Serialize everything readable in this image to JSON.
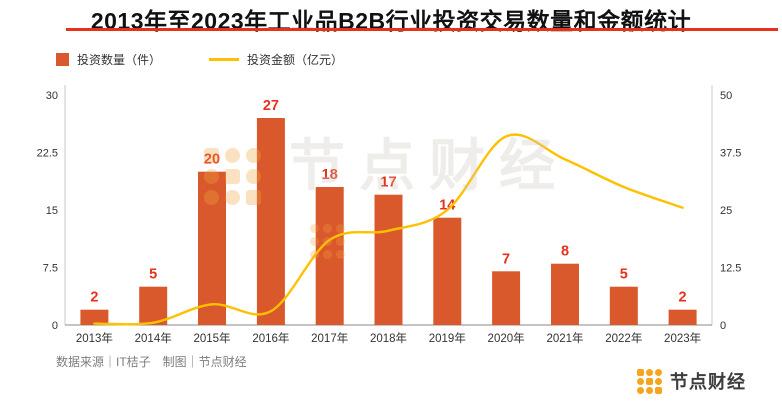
{
  "title": "2013年至2023年工业品B2B行业投资交易数量和金额统计",
  "chart_data": {
    "type": "combo",
    "title": "2013年至2023年工业品B2B行业投资交易数量和金额统计",
    "categories": [
      "2013年",
      "2014年",
      "2015年",
      "2016年",
      "2017年",
      "2018年",
      "2019年",
      "2020年",
      "2021年",
      "2022年",
      "2023年"
    ],
    "series": [
      {
        "name": "投资数量（件）",
        "type": "bar",
        "axis": "left",
        "color": "#d9592c",
        "values": [
          2,
          5,
          20,
          27,
          18,
          17,
          14,
          7,
          8,
          5,
          2
        ]
      },
      {
        "name": "投资金额（亿元）",
        "type": "line",
        "axis": "right",
        "color": "#ffc000",
        "values": [
          0.3,
          0.5,
          4.5,
          3,
          18.5,
          20.5,
          25,
          41,
          36,
          30,
          25.5
        ]
      }
    ],
    "left_axis": {
      "label": "投资数量（件）",
      "ticks": [
        0,
        7.5,
        15,
        22.5,
        30
      ],
      "max": 30
    },
    "right_axis": {
      "label": "投资金额（亿元）",
      "ticks": [
        0,
        12.5,
        25,
        37.5,
        50
      ],
      "max": 50
    },
    "bar_label_color": "#e6321c",
    "grid": false,
    "legend_position": "top-left"
  },
  "watermark": {
    "text": "节点财经"
  },
  "footer": {
    "source": "数据来源｜IT桔子　制图｜节点财经",
    "brand": "节点财经"
  }
}
